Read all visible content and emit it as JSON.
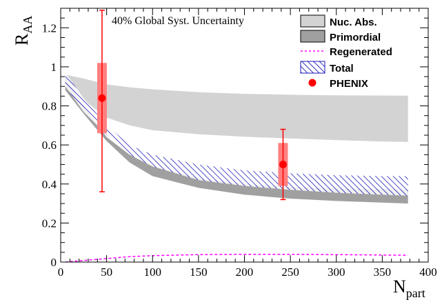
{
  "chart_data": {
    "type": "area",
    "xlim": [
      0,
      400
    ],
    "ylim": [
      0,
      1.3
    ],
    "xlabel_main": "N",
    "xlabel_sub": "part",
    "ylabel_main": "R",
    "ylabel_sub": "AA",
    "annotation": "40% Global Syst. Uncertainty",
    "x_ticks": [
      "0",
      "50",
      "100",
      "150",
      "200",
      "250",
      "300",
      "350",
      "400"
    ],
    "y_ticks": [
      "0",
      "0.2",
      "0.4",
      "0.6",
      "0.8",
      "1",
      "1.2"
    ],
    "colors": {
      "nuc_abs": "#d3d3d3",
      "primordial": "#a0a0a0",
      "regenerated": "#ff00ff",
      "total": "#1515b8",
      "phenix": "#ff0000",
      "phenix_box": "#ff8080"
    },
    "legend": [
      {
        "label": "Nuc. Abs.",
        "style": "fill-light"
      },
      {
        "label": "Primordial",
        "style": "fill-dark"
      },
      {
        "label": "Regenerated",
        "style": "dashed-magenta"
      },
      {
        "label": "Total",
        "style": "hatched-blue"
      },
      {
        "label": "PHENIX",
        "style": "red-marker"
      }
    ],
    "bands": {
      "x": [
        5,
        25,
        50,
        75,
        100,
        150,
        200,
        250,
        300,
        350,
        378
      ],
      "nuc_abs_upper": [
        0.96,
        0.94,
        0.91,
        0.895,
        0.885,
        0.87,
        0.862,
        0.857,
        0.854,
        0.853,
        0.852
      ],
      "nuc_abs_lower": [
        0.91,
        0.83,
        0.74,
        0.7,
        0.675,
        0.655,
        0.642,
        0.633,
        0.625,
        0.618,
        0.615
      ],
      "primordial_upper": [
        0.94,
        0.8,
        0.64,
        0.55,
        0.49,
        0.43,
        0.4,
        0.385,
        0.378,
        0.374,
        0.372
      ],
      "primordial_lower": [
        0.88,
        0.76,
        0.62,
        0.51,
        0.44,
        0.38,
        0.345,
        0.325,
        0.313,
        0.305,
        0.3
      ],
      "total_upper": [
        0.97,
        0.84,
        0.7,
        0.6,
        0.55,
        0.5,
        0.47,
        0.455,
        0.445,
        0.44,
        0.44
      ],
      "total_lower": [
        0.9,
        0.77,
        0.65,
        0.55,
        0.49,
        0.42,
        0.39,
        0.37,
        0.355,
        0.345,
        0.34
      ],
      "regenerated": [
        0.0,
        0.008,
        0.018,
        0.028,
        0.033,
        0.038,
        0.04,
        0.04,
        0.038,
        0.036,
        0.035
      ]
    },
    "phenix": [
      {
        "x": 45,
        "y": 0.84,
        "stat_low": 0.36,
        "stat_high": 1.29,
        "syst_low": 0.66,
        "syst_high": 1.02
      },
      {
        "x": 242,
        "y": 0.5,
        "stat_low": 0.32,
        "stat_high": 0.68,
        "syst_low": 0.39,
        "syst_high": 0.61
      }
    ]
  }
}
